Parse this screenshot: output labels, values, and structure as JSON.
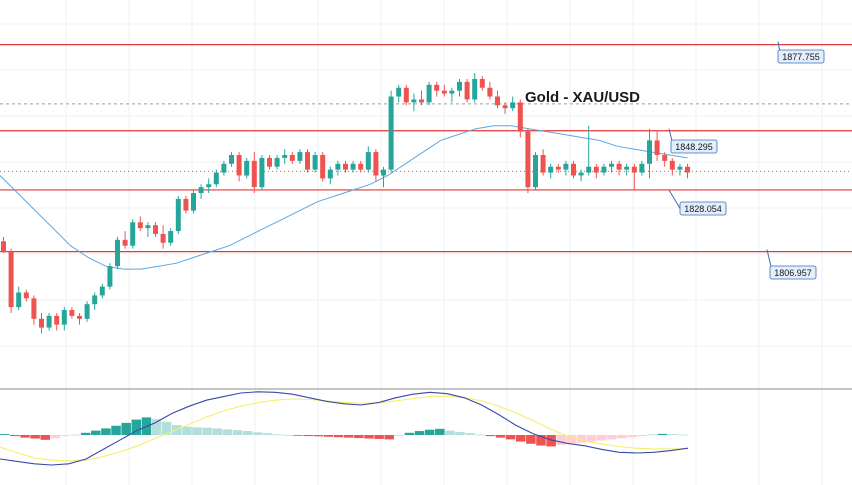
{
  "chart_data": {
    "type": "candlestick",
    "title": "Gold - XAU/USD",
    "colors": {
      "up": "#26a69a",
      "down": "#ef5350",
      "level_line": "#e53935",
      "ma_line": "#5aa9e6",
      "dashed_line": "#9e9e9e",
      "label_bg": "#e3eefc",
      "label_border": "#3f6fb5",
      "macd_line": "#3949ab",
      "signal_line": "#f6ef6b",
      "hist_pos_strong": "#26a69a",
      "hist_pos_weak": "#b2dfdb",
      "hist_neg_strong": "#ef5350",
      "hist_neg_weak": "#ffcdd2"
    },
    "levels": [
      {
        "name": "1877.755",
        "value": 1877.755,
        "label": "1877.755"
      },
      {
        "name": "1848.295",
        "value": 1848.295,
        "label": "1848.295"
      },
      {
        "name": "1828.054",
        "value": 1828.054,
        "label": "1828.054"
      },
      {
        "name": "1806.957",
        "value": 1806.957,
        "label": "1806.957"
      }
    ],
    "dashed_level": 1857.5,
    "dotted_price": 1834.4,
    "ylim": [
      1760,
      1893
    ],
    "candles": [
      [
        1810.5,
        1812,
        1806.5,
        1807
      ],
      [
        1807,
        1808,
        1786,
        1788
      ],
      [
        1788,
        1795,
        1787,
        1793
      ],
      [
        1793,
        1794,
        1790,
        1791
      ],
      [
        1791,
        1792,
        1782,
        1784
      ],
      [
        1784,
        1786,
        1779,
        1781
      ],
      [
        1781,
        1786,
        1780,
        1785
      ],
      [
        1785,
        1786,
        1780,
        1782
      ],
      [
        1782,
        1788,
        1780,
        1787
      ],
      [
        1787,
        1788,
        1784,
        1785
      ],
      [
        1785,
        1786,
        1782,
        1784
      ],
      [
        1784,
        1790,
        1783,
        1789
      ],
      [
        1789,
        1793,
        1787,
        1792
      ],
      [
        1792,
        1796,
        1791,
        1795
      ],
      [
        1795,
        1803,
        1794,
        1802
      ],
      [
        1802,
        1812,
        1801,
        1811
      ],
      [
        1811,
        1814,
        1808,
        1809
      ],
      [
        1809,
        1818,
        1808,
        1817
      ],
      [
        1817,
        1819,
        1814,
        1815
      ],
      [
        1815,
        1817,
        1812,
        1816
      ],
      [
        1816,
        1817,
        1812,
        1813
      ],
      [
        1813,
        1816,
        1808,
        1810
      ],
      [
        1810,
        1815,
        1809,
        1814
      ],
      [
        1814,
        1826,
        1813,
        1825
      ],
      [
        1825,
        1826,
        1820,
        1821
      ],
      [
        1821,
        1828,
        1820,
        1827
      ],
      [
        1827,
        1830,
        1825,
        1829
      ],
      [
        1829,
        1832,
        1827,
        1830
      ],
      [
        1830,
        1835,
        1829,
        1834
      ],
      [
        1834,
        1838,
        1833,
        1837
      ],
      [
        1837,
        1841,
        1836,
        1840
      ],
      [
        1840,
        1841,
        1831,
        1833
      ],
      [
        1833,
        1839,
        1832,
        1838
      ],
      [
        1838,
        1841,
        1827,
        1829
      ],
      [
        1829,
        1840,
        1828,
        1839
      ],
      [
        1839,
        1840,
        1835,
        1836
      ],
      [
        1836,
        1840,
        1835,
        1839
      ],
      [
        1839,
        1842,
        1837,
        1840
      ],
      [
        1840,
        1841,
        1837,
        1838
      ],
      [
        1838,
        1842,
        1837,
        1841
      ],
      [
        1841,
        1842,
        1834,
        1835
      ],
      [
        1835,
        1841,
        1834,
        1840
      ],
      [
        1840,
        1841,
        1831,
        1832
      ],
      [
        1832,
        1836,
        1830,
        1835
      ],
      [
        1835,
        1838,
        1833,
        1837
      ],
      [
        1837,
        1838,
        1834,
        1835
      ],
      [
        1835,
        1838,
        1834,
        1837
      ],
      [
        1837,
        1838,
        1834,
        1835
      ],
      [
        1835,
        1843,
        1834,
        1841
      ],
      [
        1841,
        1842,
        1831,
        1833
      ],
      [
        1833,
        1836,
        1829,
        1835
      ],
      [
        1835,
        1862,
        1834,
        1860
      ],
      [
        1860,
        1864,
        1858,
        1863
      ],
      [
        1863,
        1864,
        1857,
        1858
      ],
      [
        1858,
        1861,
        1855,
        1859
      ],
      [
        1859,
        1862,
        1857,
        1858
      ],
      [
        1858,
        1865,
        1857,
        1864
      ],
      [
        1864,
        1865,
        1860,
        1862
      ],
      [
        1862,
        1864,
        1860,
        1861
      ],
      [
        1861,
        1863,
        1858,
        1862
      ],
      [
        1862,
        1866,
        1860,
        1865
      ],
      [
        1865,
        1866,
        1858,
        1859
      ],
      [
        1859,
        1868,
        1858,
        1866
      ],
      [
        1866,
        1867,
        1862,
        1863
      ],
      [
        1863,
        1865,
        1859,
        1860
      ],
      [
        1860,
        1862,
        1856,
        1857
      ],
      [
        1857,
        1858,
        1854,
        1856
      ],
      [
        1856,
        1860,
        1855,
        1858
      ],
      [
        1858,
        1859,
        1846,
        1848
      ],
      [
        1848,
        1849,
        1827,
        1829
      ],
      [
        1829,
        1841,
        1828,
        1840
      ],
      [
        1840,
        1842,
        1833,
        1834
      ],
      [
        1834,
        1837,
        1832,
        1836
      ],
      [
        1836,
        1837,
        1834,
        1835
      ],
      [
        1835,
        1838,
        1833,
        1837
      ],
      [
        1837,
        1838,
        1832,
        1833
      ],
      [
        1833,
        1835,
        1831,
        1834
      ],
      [
        1834,
        1850,
        1833,
        1836
      ],
      [
        1836,
        1837,
        1832,
        1834
      ],
      [
        1834,
        1837,
        1833,
        1836
      ],
      [
        1836,
        1838,
        1834,
        1837
      ],
      [
        1837,
        1838,
        1833,
        1835
      ],
      [
        1835,
        1837,
        1833,
        1836
      ],
      [
        1836,
        1837,
        1828,
        1834
      ],
      [
        1834,
        1838,
        1833,
        1837
      ],
      [
        1837,
        1849,
        1832,
        1845
      ],
      [
        1845,
        1848,
        1838,
        1840
      ],
      [
        1840,
        1841,
        1836,
        1838
      ],
      [
        1838,
        1839,
        1833,
        1835
      ],
      [
        1835,
        1837,
        1833,
        1836
      ],
      [
        1836,
        1837,
        1832,
        1834
      ]
    ],
    "ma": [
      1833,
      1827,
      1821,
      1815,
      1809,
      1805,
      1802,
      1801,
      1801,
      1802,
      1803,
      1805,
      1807,
      1809,
      1812,
      1815,
      1818,
      1821,
      1824,
      1826,
      1828,
      1830,
      1833,
      1837,
      1841,
      1845,
      1847,
      1849,
      1850,
      1850,
      1849,
      1848,
      1847,
      1846,
      1845,
      1843,
      1842,
      1841,
      1840,
      1839
    ],
    "macd": {
      "ylim": [
        -1,
        1
      ],
      "hist": [
        0.04,
        -0.05,
        -0.12,
        -0.16,
        -0.22,
        -0.15,
        -0.05,
        0.02,
        0.1,
        0.2,
        0.3,
        0.42,
        0.55,
        0.7,
        0.8,
        0.72,
        0.6,
        0.45,
        0.38,
        0.35,
        0.33,
        0.3,
        0.26,
        0.22,
        0.18,
        0.12,
        0.08,
        0.03,
        0.0,
        -0.03,
        -0.05,
        -0.06,
        -0.08,
        -0.1,
        -0.12,
        -0.14,
        -0.16,
        -0.18,
        -0.2,
        -0.05,
        0.1,
        0.18,
        0.24,
        0.28,
        0.2,
        0.14,
        0.08,
        0.02,
        -0.05,
        -0.12,
        -0.2,
        -0.3,
        -0.4,
        -0.48,
        -0.52,
        -0.45,
        -0.38,
        -0.35,
        -0.3,
        -0.25,
        -0.2,
        -0.15,
        -0.1,
        -0.05,
        0.03,
        0.05,
        0.04,
        0.02
      ],
      "macd_line": [
        -1.0,
        -1.1,
        -1.2,
        -1.25,
        -1.2,
        -1.0,
        -0.6,
        -0.2,
        0.2,
        0.5,
        0.9,
        1.2,
        1.45,
        1.6,
        1.75,
        1.8,
        1.78,
        1.7,
        1.55,
        1.4,
        1.3,
        1.25,
        1.35,
        1.55,
        1.7,
        1.78,
        1.72,
        1.55,
        1.25,
        0.85,
        0.4,
        0.05,
        -0.2,
        -0.35,
        -0.45,
        -0.6,
        -0.72,
        -0.75,
        -0.72,
        -0.65,
        -0.55
      ],
      "signal_line": [
        -0.5,
        -0.75,
        -0.95,
        -1.05,
        -1.08,
        -1.05,
        -0.9,
        -0.7,
        -0.45,
        -0.15,
        0.15,
        0.45,
        0.75,
        1.0,
        1.2,
        1.35,
        1.45,
        1.5,
        1.48,
        1.42,
        1.36,
        1.32,
        1.34,
        1.42,
        1.52,
        1.6,
        1.62,
        1.56,
        1.42,
        1.2,
        0.92,
        0.6,
        0.25,
        -0.05,
        -0.25,
        -0.38,
        -0.48,
        -0.55,
        -0.58,
        -0.58,
        -0.57
      ]
    }
  }
}
